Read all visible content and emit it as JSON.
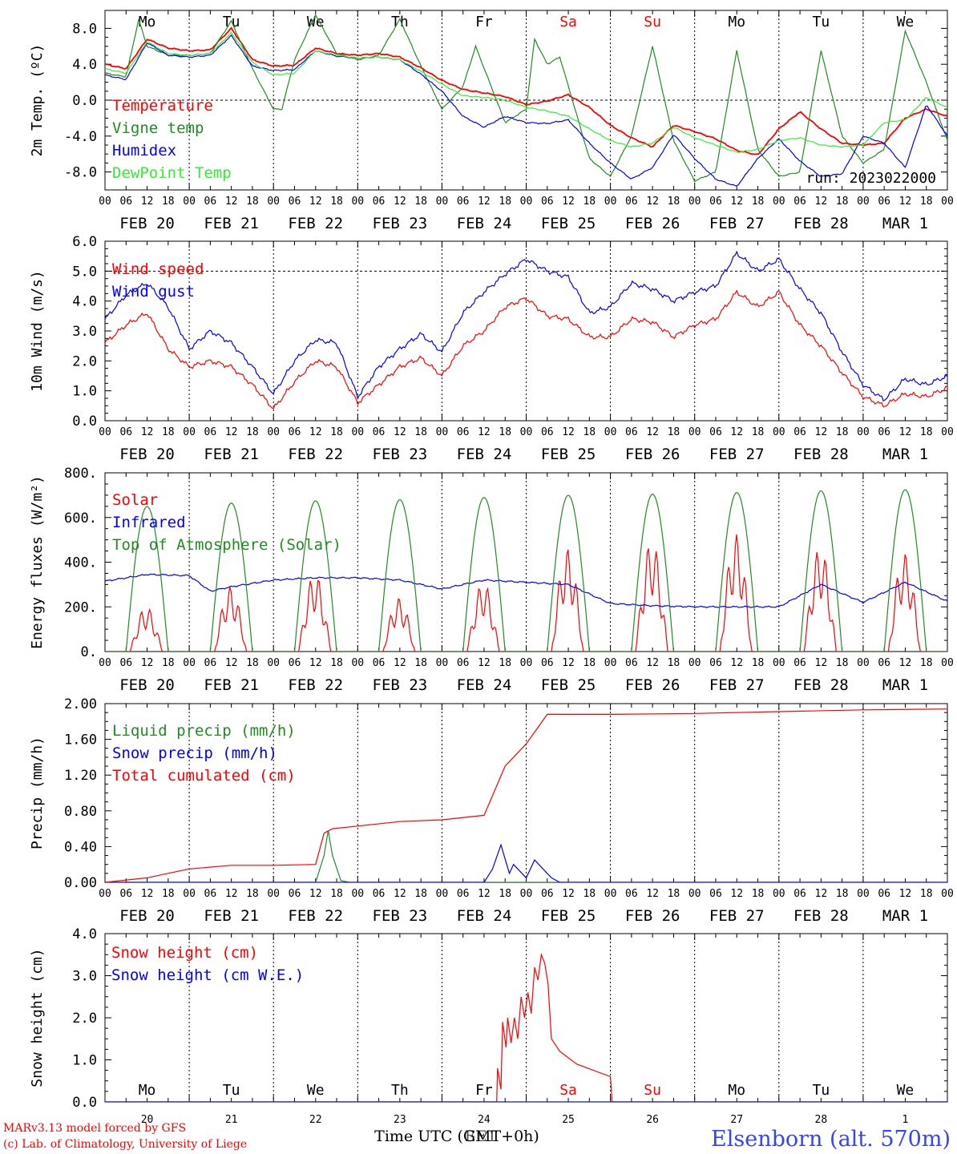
{
  "run_label": "run: 2023022000",
  "day_names": [
    "Mo",
    "Tu",
    "We",
    "Th",
    "Fr",
    "Sa",
    "Su",
    "Mo",
    "Tu",
    "We"
  ],
  "day_name_colors": [
    "#000000",
    "#000000",
    "#000000",
    "#000000",
    "#000000",
    "#ff0000",
    "#ff0000",
    "#000000",
    "#000000",
    "#000000"
  ],
  "date_labels": [
    "FEB 20",
    "FEB 21",
    "FEB 22",
    "FEB 23",
    "FEB 24",
    "FEB 25",
    "FEB 26",
    "FEB 27",
    "FEB 28",
    "MAR  1"
  ],
  "hour_labels": [
    "00",
    "06",
    "12",
    "18"
  ],
  "end_hour_label": "00",
  "day_numbers": [
    "20",
    "21",
    "22",
    "23",
    "24",
    "25",
    "26",
    "27",
    "28",
    "1"
  ],
  "footer": {
    "model": "MARv3.13 model forced by GFS",
    "copyright": "(c) Lab. of Climatology, University of Liege",
    "time_label": "Time UTC (GMT+0h)",
    "time_label_overlay": "EET",
    "station": "Elsenborn (alt. 570m)"
  },
  "colors": {
    "red": "#ff0000",
    "green": "#228b22",
    "blue": "#0000ff",
    "lightgreen": "#33ee33",
    "purple": "#8a2be2"
  },
  "chart_data": [
    {
      "type": "line",
      "ylabel": "2m Temp. (ºC)",
      "ylim": [
        -10,
        10
      ],
      "yticks": [
        "8.0",
        "4.0",
        "0.0",
        "-4.0",
        "-8.0"
      ],
      "ytick_values": [
        8,
        4,
        0,
        -4,
        -8
      ],
      "x_days": [
        0,
        10
      ],
      "series": [
        {
          "name": "Temperature",
          "color": "#ff0000",
          "x": [
            0,
            0.25,
            0.5,
            0.75,
            1,
            1.25,
            1.5,
            1.75,
            2,
            2.25,
            2.5,
            2.75,
            3,
            3.25,
            3.5,
            3.75,
            4,
            4.25,
            4.5,
            4.75,
            5,
            5.25,
            5.5,
            5.75,
            6,
            6.25,
            6.5,
            6.75,
            7,
            7.25,
            7.5,
            7.75,
            8,
            8.25,
            8.5,
            8.75,
            9,
            9.25,
            9.5,
            9.75,
            10
          ],
          "y": [
            4.0,
            3.5,
            6.8,
            5.8,
            5.5,
            5.6,
            8.0,
            4.5,
            3.8,
            3.9,
            5.8,
            5.2,
            5.0,
            5.2,
            4.8,
            3.6,
            2.2,
            1.2,
            0.8,
            0.4,
            -0.5,
            -0.1,
            0.6,
            -0.8,
            -2.8,
            -4.2,
            -5.2,
            -2.8,
            -3.5,
            -4.3,
            -5.6,
            -6.1,
            -3.2,
            -1.3,
            -3.2,
            -4.8,
            -5.0,
            -4.8,
            -2.0,
            -1.0,
            -1.8
          ]
        },
        {
          "name": "Vigne temp",
          "color": "#228b22",
          "x": [
            0,
            0.25,
            0.4,
            0.5,
            0.75,
            1,
            1.25,
            1.5,
            1.75,
            2,
            2.1,
            2.25,
            2.5,
            2.75,
            3,
            3.25,
            3.5,
            3.75,
            4,
            4.25,
            4.4,
            4.75,
            5,
            5.1,
            5.25,
            5.4,
            5.75,
            6,
            6.25,
            6.5,
            6.75,
            7,
            7.25,
            7.5,
            7.75,
            8,
            8.25,
            8.5,
            8.75,
            9,
            9.25,
            9.5,
            9.75,
            10
          ],
          "y": [
            3.0,
            2.6,
            9.0,
            6.0,
            5.0,
            5.0,
            5.2,
            8.8,
            3.5,
            -1.0,
            -1.0,
            4.5,
            9.5,
            5.2,
            4.5,
            5.0,
            9.0,
            3.8,
            -1.0,
            1.5,
            6.0,
            -2.5,
            -1.0,
            6.8,
            4.0,
            4.8,
            -6.5,
            -8.5,
            -4.0,
            6.0,
            -4.5,
            -9.0,
            -8.0,
            5.5,
            -5.5,
            -8.5,
            -8.0,
            5.5,
            -4.0,
            -7.0,
            -5.5,
            7.7,
            2.0,
            -4.5
          ]
        },
        {
          "name": "Humidex",
          "color": "#0000ff",
          "x": [
            0,
            0.25,
            0.5,
            0.75,
            1,
            1.25,
            1.5,
            1.75,
            2,
            2.25,
            2.5,
            2.75,
            3,
            3.25,
            3.5,
            3.75,
            4,
            4.25,
            4.5,
            4.75,
            5,
            5.25,
            5.5,
            5.75,
            6,
            6.25,
            6.5,
            6.75,
            7,
            7.25,
            7.5,
            7.75,
            8,
            8.25,
            8.5,
            8.75,
            9,
            9.25,
            9.5,
            9.75,
            10
          ],
          "y": [
            2.8,
            2.3,
            6.4,
            5.0,
            4.8,
            5.0,
            7.2,
            3.8,
            3.3,
            3.4,
            5.5,
            4.9,
            4.7,
            4.8,
            4.5,
            2.9,
            1.0,
            -1.8,
            -3.0,
            -1.8,
            -2.5,
            -2.6,
            -2.2,
            -4.8,
            -7.0,
            -8.8,
            -7.5,
            -3.8,
            -6.5,
            -8.8,
            -9.6,
            -6.5,
            -4.3,
            -6.8,
            -8.5,
            -8.2,
            -4.0,
            -4.8,
            -7.5,
            -0.5,
            -4.0
          ]
        },
        {
          "name": "DewPoint Temp",
          "color": "#33ee33",
          "x": [
            0,
            0.25,
            0.5,
            0.75,
            1,
            1.25,
            1.5,
            1.75,
            2,
            2.25,
            2.5,
            2.75,
            3,
            3.25,
            3.5,
            3.75,
            4,
            4.25,
            4.5,
            4.75,
            5,
            5.25,
            5.5,
            5.75,
            6,
            6.25,
            6.5,
            6.75,
            7,
            7.25,
            7.5,
            7.75,
            8,
            8.25,
            8.5,
            8.75,
            9,
            9.25,
            9.5,
            9.75,
            10
          ],
          "y": [
            3.5,
            3.0,
            6.5,
            5.2,
            5.0,
            5.2,
            7.5,
            4.2,
            2.8,
            3.0,
            5.5,
            5.0,
            4.7,
            4.8,
            4.5,
            3.2,
            1.8,
            0.5,
            0.3,
            0.0,
            -0.8,
            -1.2,
            -1.8,
            -3.2,
            -4.5,
            -5.2,
            -4.8,
            -3.0,
            -4.2,
            -5.0,
            -5.8,
            -5.5,
            -4.5,
            -4.2,
            -5.0,
            -5.2,
            -5.0,
            -2.5,
            -2.2,
            0.3,
            -0.8
          ]
        }
      ]
    },
    {
      "type": "line",
      "ylabel": "10m Wind (m/s)",
      "ylim": [
        0,
        6
      ],
      "yticks": [
        "6.0",
        "5.0",
        "4.0",
        "3.0",
        "2.0",
        "1.0",
        "0.0"
      ],
      "ytick_values": [
        6,
        5,
        4,
        3,
        2,
        1,
        0
      ],
      "series": [
        {
          "name": "Wind speed",
          "color": "#ff0000",
          "x": [
            0,
            0.25,
            0.5,
            0.75,
            1,
            1.25,
            1.5,
            1.75,
            2,
            2.25,
            2.5,
            2.75,
            3,
            3.25,
            3.5,
            3.75,
            4,
            4.25,
            4.5,
            4.75,
            5,
            5.25,
            5.5,
            5.75,
            6,
            6.25,
            6.5,
            6.75,
            7,
            7.25,
            7.5,
            7.75,
            8,
            8.25,
            8.5,
            8.75,
            9,
            9.25,
            9.5,
            9.75,
            10
          ],
          "y": [
            2.6,
            3.2,
            3.6,
            2.4,
            1.8,
            2.0,
            1.8,
            1.2,
            0.4,
            1.3,
            2.0,
            1.8,
            0.6,
            1.2,
            1.8,
            2.1,
            1.5,
            2.5,
            3.0,
            3.8,
            4.1,
            3.5,
            3.4,
            2.8,
            2.8,
            3.4,
            3.3,
            2.8,
            3.2,
            3.4,
            4.3,
            3.8,
            4.3,
            3.2,
            2.5,
            1.6,
            0.8,
            0.5,
            0.9,
            0.8,
            1.1
          ]
        },
        {
          "name": "Wind gust",
          "color": "#0000ff",
          "x": [
            0,
            0.25,
            0.5,
            0.75,
            1,
            1.25,
            1.5,
            1.75,
            2,
            2.25,
            2.5,
            2.75,
            3,
            3.25,
            3.5,
            3.75,
            4,
            4.25,
            4.5,
            4.75,
            5,
            5.25,
            5.5,
            5.75,
            6,
            6.25,
            6.5,
            6.75,
            7,
            7.25,
            7.5,
            7.75,
            8,
            8.25,
            8.5,
            8.75,
            9,
            9.25,
            9.5,
            9.75,
            10
          ],
          "y": [
            3.4,
            4.2,
            4.6,
            3.8,
            2.4,
            3.0,
            2.6,
            1.8,
            0.9,
            2.0,
            2.7,
            2.6,
            0.8,
            1.8,
            2.4,
            2.9,
            2.3,
            3.6,
            4.3,
            4.9,
            5.4,
            5.0,
            4.8,
            3.6,
            3.8,
            4.6,
            4.4,
            4.0,
            4.3,
            4.5,
            5.6,
            5.0,
            5.4,
            4.4,
            3.6,
            2.3,
            1.2,
            0.7,
            1.4,
            1.2,
            1.5
          ]
        }
      ]
    },
    {
      "type": "line",
      "ylabel": "Energy fluxes (W/m²)",
      "ylim": [
        0,
        800
      ],
      "yticks": [
        "800.",
        "600.",
        "400.",
        "200.",
        "0."
      ],
      "ytick_values": [
        800,
        600,
        400,
        200,
        0
      ],
      "series": [
        {
          "name": "Solar",
          "color": "#ff0000",
          "daily_peaks": [
            200,
            290,
            350,
            240,
            310,
            460,
            500,
            525,
            470,
            440
          ]
        },
        {
          "name": "Infrared",
          "color": "#0000ff",
          "x": [
            0,
            0.5,
            1,
            1.25,
            1.5,
            2,
            2.5,
            3,
            3.5,
            4,
            4.5,
            5,
            5.5,
            6,
            6.5,
            7,
            7.5,
            8,
            8.5,
            9,
            9.5,
            10
          ],
          "y": [
            315,
            345,
            340,
            270,
            290,
            320,
            330,
            330,
            320,
            280,
            320,
            310,
            300,
            215,
            205,
            200,
            200,
            200,
            300,
            220,
            310,
            225
          ]
        },
        {
          "name": "Top of Atmosphere (Solar)",
          "color": "#228b22",
          "daily_peaks": [
            650,
            665,
            675,
            680,
            690,
            700,
            705,
            712,
            720,
            725
          ]
        }
      ]
    },
    {
      "type": "line",
      "ylabel": "Precip (mm/h)",
      "ylim": [
        0,
        2
      ],
      "yticks": [
        "2.00",
        "1.60",
        "1.20",
        "0.80",
        "0.40",
        "0.00"
      ],
      "ytick_values": [
        2,
        1.6,
        1.2,
        0.8,
        0.4,
        0
      ],
      "series": [
        {
          "name": "Liquid precip (mm/h)",
          "color": "#228b22",
          "x": [
            0,
            2.5,
            2.6,
            2.65,
            2.7,
            2.8,
            2.9,
            10
          ],
          "y": [
            0,
            0,
            0.3,
            0.58,
            0.3,
            0.02,
            0,
            0
          ]
        },
        {
          "name": "Snow precip (mm/h)",
          "color": "#0000ff",
          "x": [
            0,
            4.5,
            4.6,
            4.7,
            4.8,
            4.85,
            4.95,
            5.0,
            5.1,
            5.2,
            5.3,
            5.4,
            10
          ],
          "y": [
            0,
            0,
            0.15,
            0.42,
            0.1,
            0.2,
            0.1,
            0.05,
            0.25,
            0.15,
            0.05,
            0,
            0
          ]
        },
        {
          "name": "Total cumulated (cm)",
          "color": "#ff0000",
          "x": [
            0,
            0.5,
            0.75,
            1,
            1.5,
            2,
            2.5,
            2.6,
            2.7,
            3,
            3.5,
            4,
            4.5,
            4.75,
            5,
            5.25,
            5.5,
            6,
            7,
            8,
            9,
            10
          ],
          "y": [
            0,
            0.05,
            0.1,
            0.15,
            0.19,
            0.19,
            0.2,
            0.55,
            0.6,
            0.63,
            0.68,
            0.7,
            0.75,
            1.3,
            1.55,
            1.88,
            1.88,
            1.88,
            1.89,
            1.91,
            1.93,
            1.94
          ]
        }
      ]
    },
    {
      "type": "line",
      "ylabel": "Snow height (cm)",
      "ylim": [
        0,
        4
      ],
      "yticks": [
        "4.0",
        "3.0",
        "2.0",
        "1.0",
        "0.0"
      ],
      "ytick_values": [
        4,
        3,
        2,
        1,
        0
      ],
      "series": [
        {
          "name": "Snow height (cm)",
          "color": "#ff0000",
          "x": [
            0,
            4.65,
            4.66,
            4.7,
            4.72,
            4.76,
            4.78,
            4.82,
            4.86,
            4.9,
            4.94,
            4.98,
            5.02,
            5.06,
            5.1,
            5.14,
            5.18,
            5.22,
            5.26,
            5.3,
            5.4,
            5.6,
            6.0,
            6.02,
            10
          ],
          "y": [
            0,
            0,
            0.8,
            0.3,
            1.9,
            1.3,
            2.0,
            1.4,
            2.0,
            1.5,
            2.5,
            2.0,
            2.6,
            2.1,
            3.2,
            2.9,
            3.5,
            3.3,
            2.8,
            1.5,
            1.2,
            0.9,
            0.6,
            0,
            0
          ]
        },
        {
          "name": "Snow height (cm W.E.)",
          "color": "#0000ff",
          "x": [
            0,
            10
          ],
          "y": [
            0,
            0
          ]
        }
      ]
    }
  ]
}
